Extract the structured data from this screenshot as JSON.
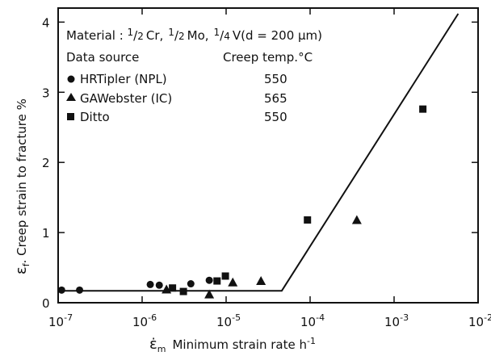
{
  "chart_data": {
    "type": "scatter",
    "x_scale": "log",
    "xlim": [
      1e-07,
      0.01
    ],
    "ylim": [
      0,
      4.2
    ],
    "x_ticks": [
      {
        "value": 1e-07,
        "base": "10",
        "exp": "-7"
      },
      {
        "value": 1e-06,
        "base": "10",
        "exp": "-6"
      },
      {
        "value": 1e-05,
        "base": "10",
        "exp": "-5"
      },
      {
        "value": 0.0001,
        "base": "10",
        "exp": "-4"
      },
      {
        "value": 0.001,
        "base": "10",
        "exp": "-3"
      },
      {
        "value": 0.01,
        "base": "10",
        "exp": "-2"
      }
    ],
    "y_ticks": [
      {
        "value": 0,
        "label": "0"
      },
      {
        "value": 1,
        "label": "1"
      },
      {
        "value": 2,
        "label": "2"
      },
      {
        "value": 3,
        "label": "3"
      },
      {
        "value": 4,
        "label": "4"
      }
    ],
    "xlabel": {
      "symbol": "ε̇",
      "sub": "m",
      "text": "Minimum strain rate h",
      "sup": "-1"
    },
    "ylabel": {
      "symbol": "ε",
      "sub": "f",
      "text": ". Creep strain to fracture %"
    },
    "legend": {
      "material_prefix": "Material : ",
      "material_parts": [
        {
          "num": "1",
          "den": "2",
          "elem": "Cr,"
        },
        {
          "num": "1",
          "den": "2",
          "elem": "Mo,"
        },
        {
          "num": "1",
          "den": "4",
          "elem": "V(d = 200 μm)"
        }
      ],
      "header_source": "Data source",
      "header_temp": "Creep temp.°C"
    },
    "series": [
      {
        "name": "HRTipler (NPL)",
        "temp": "550",
        "marker": "circle",
        "points": [
          {
            "x": 1.1e-07,
            "y": 0.18
          },
          {
            "x": 1.8e-07,
            "y": 0.18
          },
          {
            "x": 1.25e-06,
            "y": 0.26
          },
          {
            "x": 1.6e-06,
            "y": 0.25
          },
          {
            "x": 3.8e-06,
            "y": 0.27
          },
          {
            "x": 6.3e-06,
            "y": 0.32
          }
        ]
      },
      {
        "name": "GAWebster (IC)",
        "temp": "565",
        "marker": "triangle",
        "points": [
          {
            "x": 1.95e-06,
            "y": 0.19
          },
          {
            "x": 6.3e-06,
            "y": 0.12
          },
          {
            "x": 1.2e-05,
            "y": 0.29
          },
          {
            "x": 2.6e-05,
            "y": 0.31
          },
          {
            "x": 0.00036,
            "y": 1.18
          }
        ]
      },
      {
        "name": "Ditto",
        "temp": "550",
        "marker": "square",
        "points": [
          {
            "x": 2.3e-06,
            "y": 0.21
          },
          {
            "x": 3.1e-06,
            "y": 0.16
          },
          {
            "x": 7.8e-06,
            "y": 0.31
          },
          {
            "x": 9.8e-06,
            "y": 0.38
          },
          {
            "x": 9.3e-05,
            "y": 1.18
          },
          {
            "x": 0.0022,
            "y": 2.76
          }
        ]
      }
    ],
    "trend_line": [
      {
        "x": 1e-07,
        "y": 0.17
      },
      {
        "x": 4.6e-05,
        "y": 0.17
      },
      {
        "x": 0.0058,
        "y": 4.12
      }
    ]
  }
}
